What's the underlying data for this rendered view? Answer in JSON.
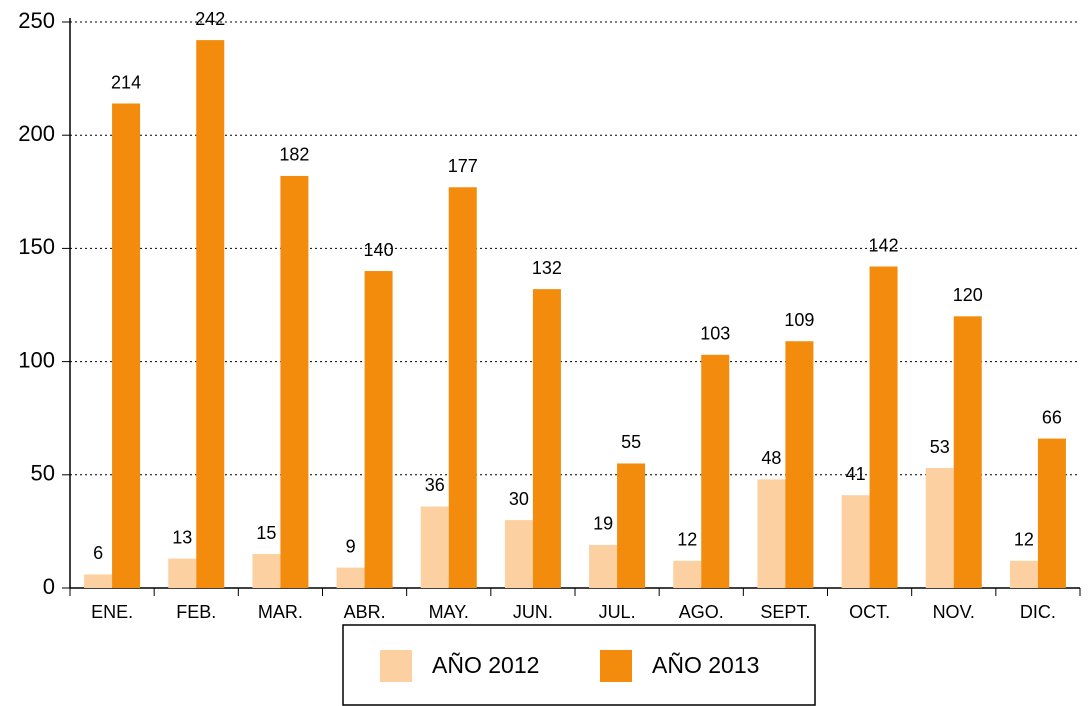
{
  "chart_data": {
    "type": "bar",
    "categories": [
      "ENE.",
      "FEB.",
      "MAR.",
      "ABR.",
      "MAY.",
      "JUN.",
      "JUL.",
      "AGO.",
      "SEPT.",
      "OCT.",
      "NOV.",
      "DIC."
    ],
    "series": [
      {
        "name": "AÑO 2012",
        "color": "#fdd0a2",
        "values": [
          6,
          13,
          15,
          9,
          36,
          30,
          19,
          12,
          48,
          41,
          53,
          12
        ]
      },
      {
        "name": "AÑO 2013",
        "color": "#f38b0c",
        "values": [
          214,
          242,
          182,
          140,
          177,
          132,
          55,
          103,
          109,
          142,
          120,
          66
        ]
      }
    ],
    "ylim": [
      0,
      250
    ],
    "yticks": [
      0,
      50,
      100,
      150,
      200,
      250
    ],
    "grid": true,
    "legend": "bottom"
  }
}
